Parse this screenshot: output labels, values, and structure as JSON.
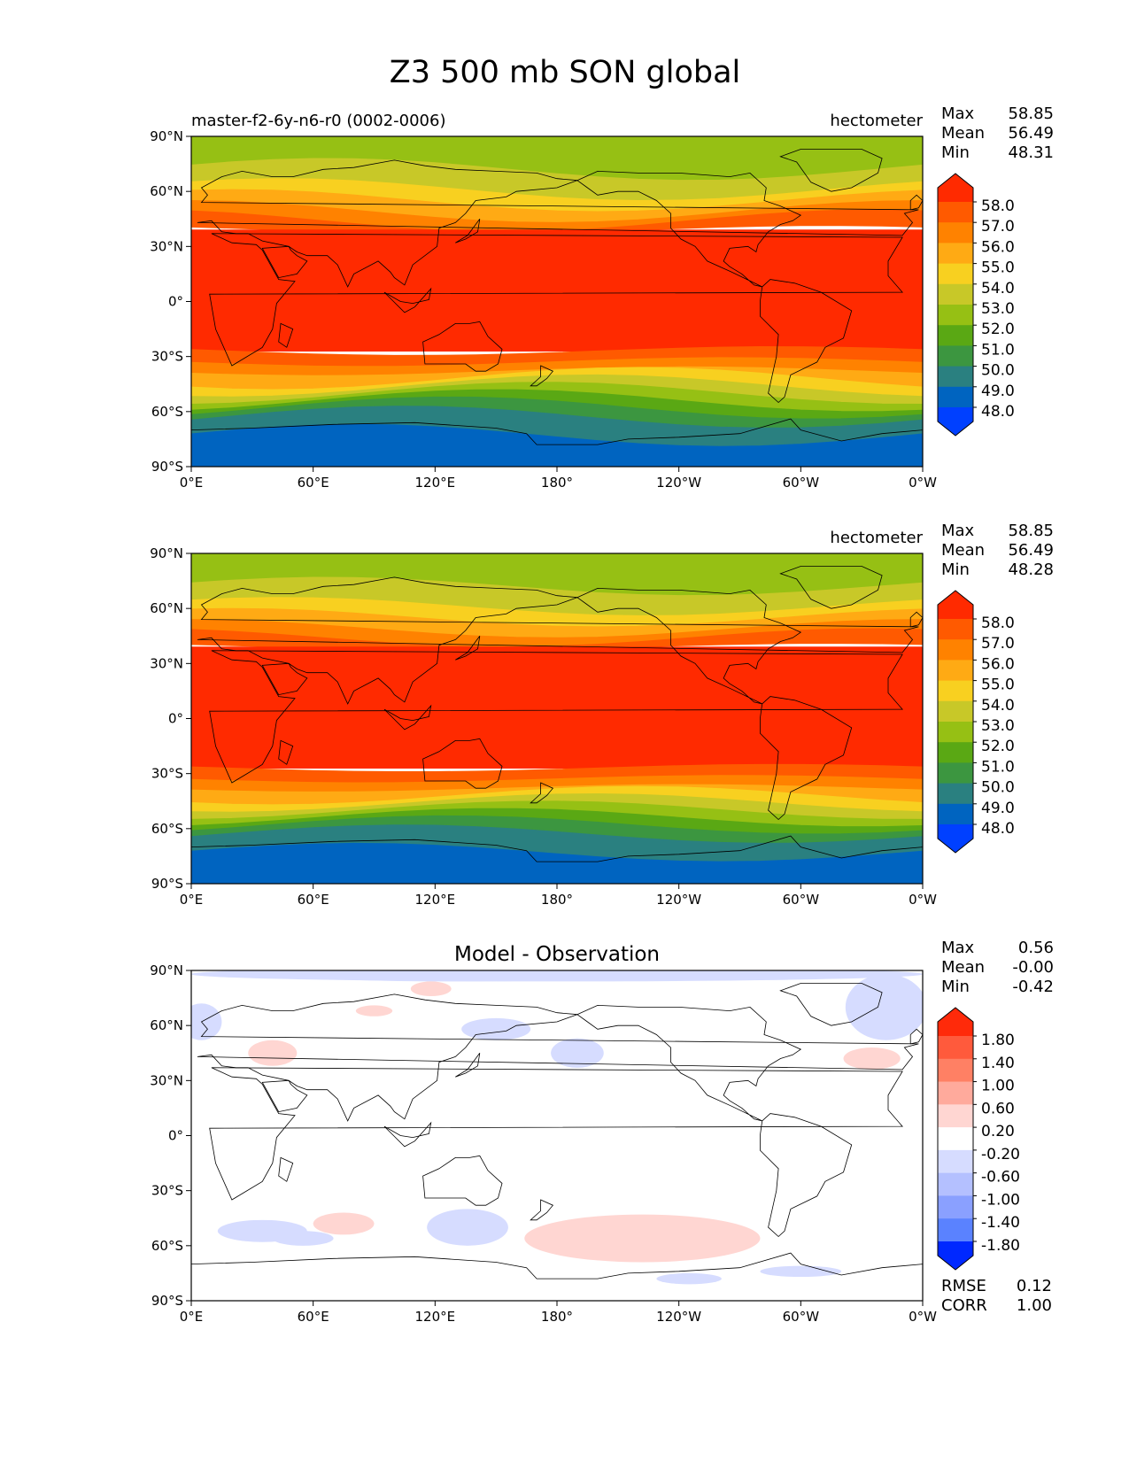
{
  "figure": {
    "title": "Z3 500 mb SON global"
  },
  "axes": {
    "lat_ticks": [
      "90°N",
      "60°N",
      "30°N",
      "0°",
      "30°S",
      "60°S",
      "90°S"
    ],
    "lon_ticks": [
      "0°E",
      "60°E",
      "120°E",
      "180°",
      "120°W",
      "60°W",
      "0°W"
    ]
  },
  "colors": {
    "mean_levels": [
      "#0040ff",
      "#0064c0",
      "#2a8080",
      "#3c9640",
      "#5aa814",
      "#96c014",
      "#c8c828",
      "#f8d020",
      "#ffaa14",
      "#ff8200",
      "#ff5a00",
      "#ff2a00"
    ],
    "diff_levels": [
      "#0028ff",
      "#2a5aff",
      "#5a82ff",
      "#8aa0ff",
      "#b4c0ff",
      "#d6dcff",
      "#ffffff",
      "#ffd6d2",
      "#ffaa9c",
      "#ff8064",
      "#ff5a3c",
      "#ff2a0a"
    ]
  },
  "panels": [
    {
      "id": "test",
      "left_title": "master-f2-6y-n6-r0 (0002-0006)",
      "center_title": "",
      "right_title": "hectometer",
      "stats": [
        {
          "label": "Max",
          "value": "58.85"
        },
        {
          "label": "Mean",
          "value": "56.49"
        },
        {
          "label": "Min",
          "value": "48.31"
        }
      ],
      "colorbar_labels": [
        "58.0",
        "57.0",
        "56.0",
        "55.0",
        "54.0",
        "53.0",
        "52.0",
        "51.0",
        "50.0",
        "49.0",
        "48.0"
      ],
      "metrics": []
    },
    {
      "id": "reference",
      "left_title": "",
      "center_title": "",
      "right_title": "hectometer",
      "stats": [
        {
          "label": "Max",
          "value": "58.85"
        },
        {
          "label": "Mean",
          "value": "56.49"
        },
        {
          "label": "Min",
          "value": "48.28"
        }
      ],
      "colorbar_labels": [
        "58.0",
        "57.0",
        "56.0",
        "55.0",
        "54.0",
        "53.0",
        "52.0",
        "51.0",
        "50.0",
        "49.0",
        "48.0"
      ],
      "metrics": []
    },
    {
      "id": "difference",
      "left_title": "",
      "center_title": "Model - Observation",
      "right_title": "",
      "stats": [
        {
          "label": "Max",
          "value": "0.56"
        },
        {
          "label": "Mean",
          "value": "-0.00"
        },
        {
          "label": "Min",
          "value": "-0.42"
        }
      ],
      "colorbar_labels": [
        "1.80",
        "1.40",
        "1.00",
        "0.60",
        "0.20",
        "-0.20",
        "-0.60",
        "-1.00",
        "-1.40",
        "-1.80"
      ],
      "metrics": [
        {
          "label": "RMSE",
          "value": "0.12"
        },
        {
          "label": "CORR",
          "value": "1.00"
        }
      ]
    }
  ]
}
